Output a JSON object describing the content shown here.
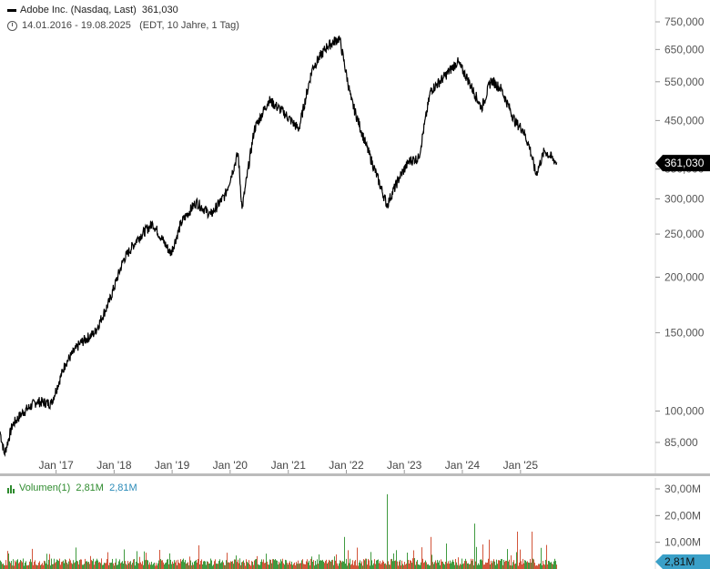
{
  "header": {
    "series_label": "Adobe Inc. (Nasdaq, Last)",
    "last_value": "361,030",
    "period": "14.01.2016 - 19.08.2025",
    "period_meta": "(EDT, 10 Jahre, 1 Tag)"
  },
  "volume_header": {
    "label": "Volumen(1)",
    "value_green": "2,81M",
    "value_blue": "2,81M"
  },
  "colors": {
    "price_line": "#000000",
    "volume_up": "#3f9a3f",
    "volume_down": "#d2553a",
    "price_tag_bg": "#000000",
    "volume_tag_bg": "#3aa0c8",
    "volume_label_green": "#2e8b2e",
    "volume_label_blue": "#2a8ab8"
  },
  "chart_data": [
    {
      "type": "line",
      "scale": "log",
      "series": [
        {
          "name": "Adobe Inc. (Nasdaq, Last)",
          "x": [
            "2016-01-14",
            "2016-02-11",
            "2016-04-01",
            "2016-06-01",
            "2016-09-01",
            "2016-12-01",
            "2017-03-01",
            "2017-06-01",
            "2017-09-01",
            "2017-12-01",
            "2018-03-01",
            "2018-06-01",
            "2018-09-01",
            "2018-12-24",
            "2019-03-01",
            "2019-06-01",
            "2019-09-01",
            "2019-12-01",
            "2020-02-20",
            "2020-03-16",
            "2020-06-01",
            "2020-09-01",
            "2020-12-01",
            "2021-03-08",
            "2021-06-01",
            "2021-09-01",
            "2021-11-19",
            "2022-02-01",
            "2022-05-01",
            "2022-09-15",
            "2022-10-01",
            "2022-12-01",
            "2023-02-01",
            "2023-04-01",
            "2023-06-15",
            "2023-09-01",
            "2023-12-01",
            "2024-02-01",
            "2024-05-01",
            "2024-07-01",
            "2024-09-01",
            "2024-12-01",
            "2025-01-15",
            "2025-03-01",
            "2025-04-08",
            "2025-06-01",
            "2025-08-19"
          ],
          "y": [
            90,
            80,
            93,
            99,
            105,
            104,
            128,
            142,
            150,
            176,
            219,
            245,
            264,
            226,
            266,
            295,
            276,
            306,
            380,
            285,
            430,
            500,
            470,
            430,
            590,
            660,
            690,
            500,
            400,
            290,
            300,
            335,
            365,
            370,
            525,
            560,
            610,
            560,
            480,
            555,
            530,
            445,
            430,
            390,
            340,
            385,
            361.03
          ]
        }
      ],
      "y_ticks": [
        "750,000",
        "650,000",
        "550,000",
        "450,000",
        "350,000",
        "300,000",
        "250,000",
        "200,000",
        "150,000",
        "100,000",
        "85,000"
      ],
      "x_ticks": [
        "Jan '17",
        "Jan '18",
        "Jan '19",
        "Jan '20",
        "Jan '21",
        "Jan '22",
        "Jan '23",
        "Jan '24",
        "Jan '25"
      ],
      "last_label": "361,030"
    },
    {
      "type": "bar",
      "series": [
        {
          "name": "Volumen(1)"
        }
      ],
      "y_ticks": [
        "30,00M",
        "20,00M",
        "10,00M"
      ],
      "typical_volume_millions": 3.0,
      "spikes_millions": [
        {
          "date": "2021-12-16",
          "value": 12.0
        },
        {
          "date": "2022-09-15",
          "value": 28.0
        },
        {
          "date": "2023-06-16",
          "value": 12.0
        },
        {
          "date": "2024-03-15",
          "value": 17.0
        },
        {
          "date": "2024-06-14",
          "value": 11.0
        },
        {
          "date": "2024-12-12",
          "value": 14.0
        },
        {
          "date": "2025-03-13",
          "value": 14.0
        },
        {
          "date": "2025-06-13",
          "value": 9.0
        }
      ],
      "last_label": "2,81M"
    }
  ]
}
